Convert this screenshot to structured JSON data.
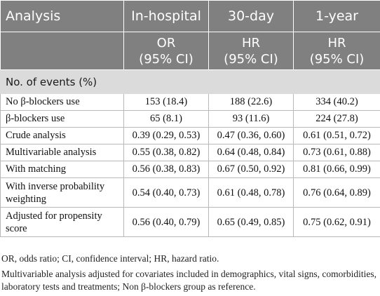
{
  "header": {
    "col_analysis": "Analysis",
    "col_inhospital": "In-hospital",
    "col_30day": "30-day",
    "col_1year": "1-year"
  },
  "subheader": {
    "inhospital_metric": "OR",
    "inhospital_ci": "(95% CI)",
    "30day_metric": "HR",
    "30day_ci": "(95% CI)",
    "1year_metric": "HR",
    "1year_ci": "(95% CI)"
  },
  "section": {
    "title": "No. of events (%)"
  },
  "rows": [
    {
      "label": "No β-blockers use",
      "inhospital": "153 (18.4)",
      "day30": "188 (22.6)",
      "year1": "334 (40.2)"
    },
    {
      "label": "β-blockers use",
      "inhospital": "65 (8.1)",
      "day30": "93 (11.6)",
      "year1": "224 (27.8)"
    },
    {
      "label": "Crude analysis",
      "inhospital": "0.39 (0.29, 0.53)",
      "day30": "0.47 (0.36, 0.60)",
      "year1": "0.61 (0.51, 0.72)"
    },
    {
      "label": "Multivariable analysis",
      "inhospital": "0.55 (0.38, 0.82)",
      "day30": "0.64 (0.48, 0.84)",
      "year1": "0.73 (0.61, 0.88)"
    },
    {
      "label": "With matching",
      "inhospital": "0.56 (0.38, 0.83)",
      "day30": "0.67 (0.50, 0.92)",
      "year1": "0.81 (0.66, 0.99)"
    },
    {
      "label": "With inverse probability weighting",
      "inhospital": "0.54 (0.40, 0.73)",
      "day30": "0.61 (0.48, 0.78)",
      "year1": "0.76 (0.64, 0.89)"
    },
    {
      "label": "Adjusted for propensity score",
      "inhospital": "0.56 (0.40, 0.79)",
      "day30": "0.65 (0.49, 0.85)",
      "year1": "0.75 (0.62, 0.91)"
    }
  ],
  "footnotes": {
    "abbreviations": "OR, odds ratio; CI, confidence interval; HR, hazard ratio.",
    "multivariable": "Multivariable analysis adjusted for covariates included in demographics, vital signs, comorbidities, laboratory tests and treatments; Non β-blockers group as reference."
  }
}
